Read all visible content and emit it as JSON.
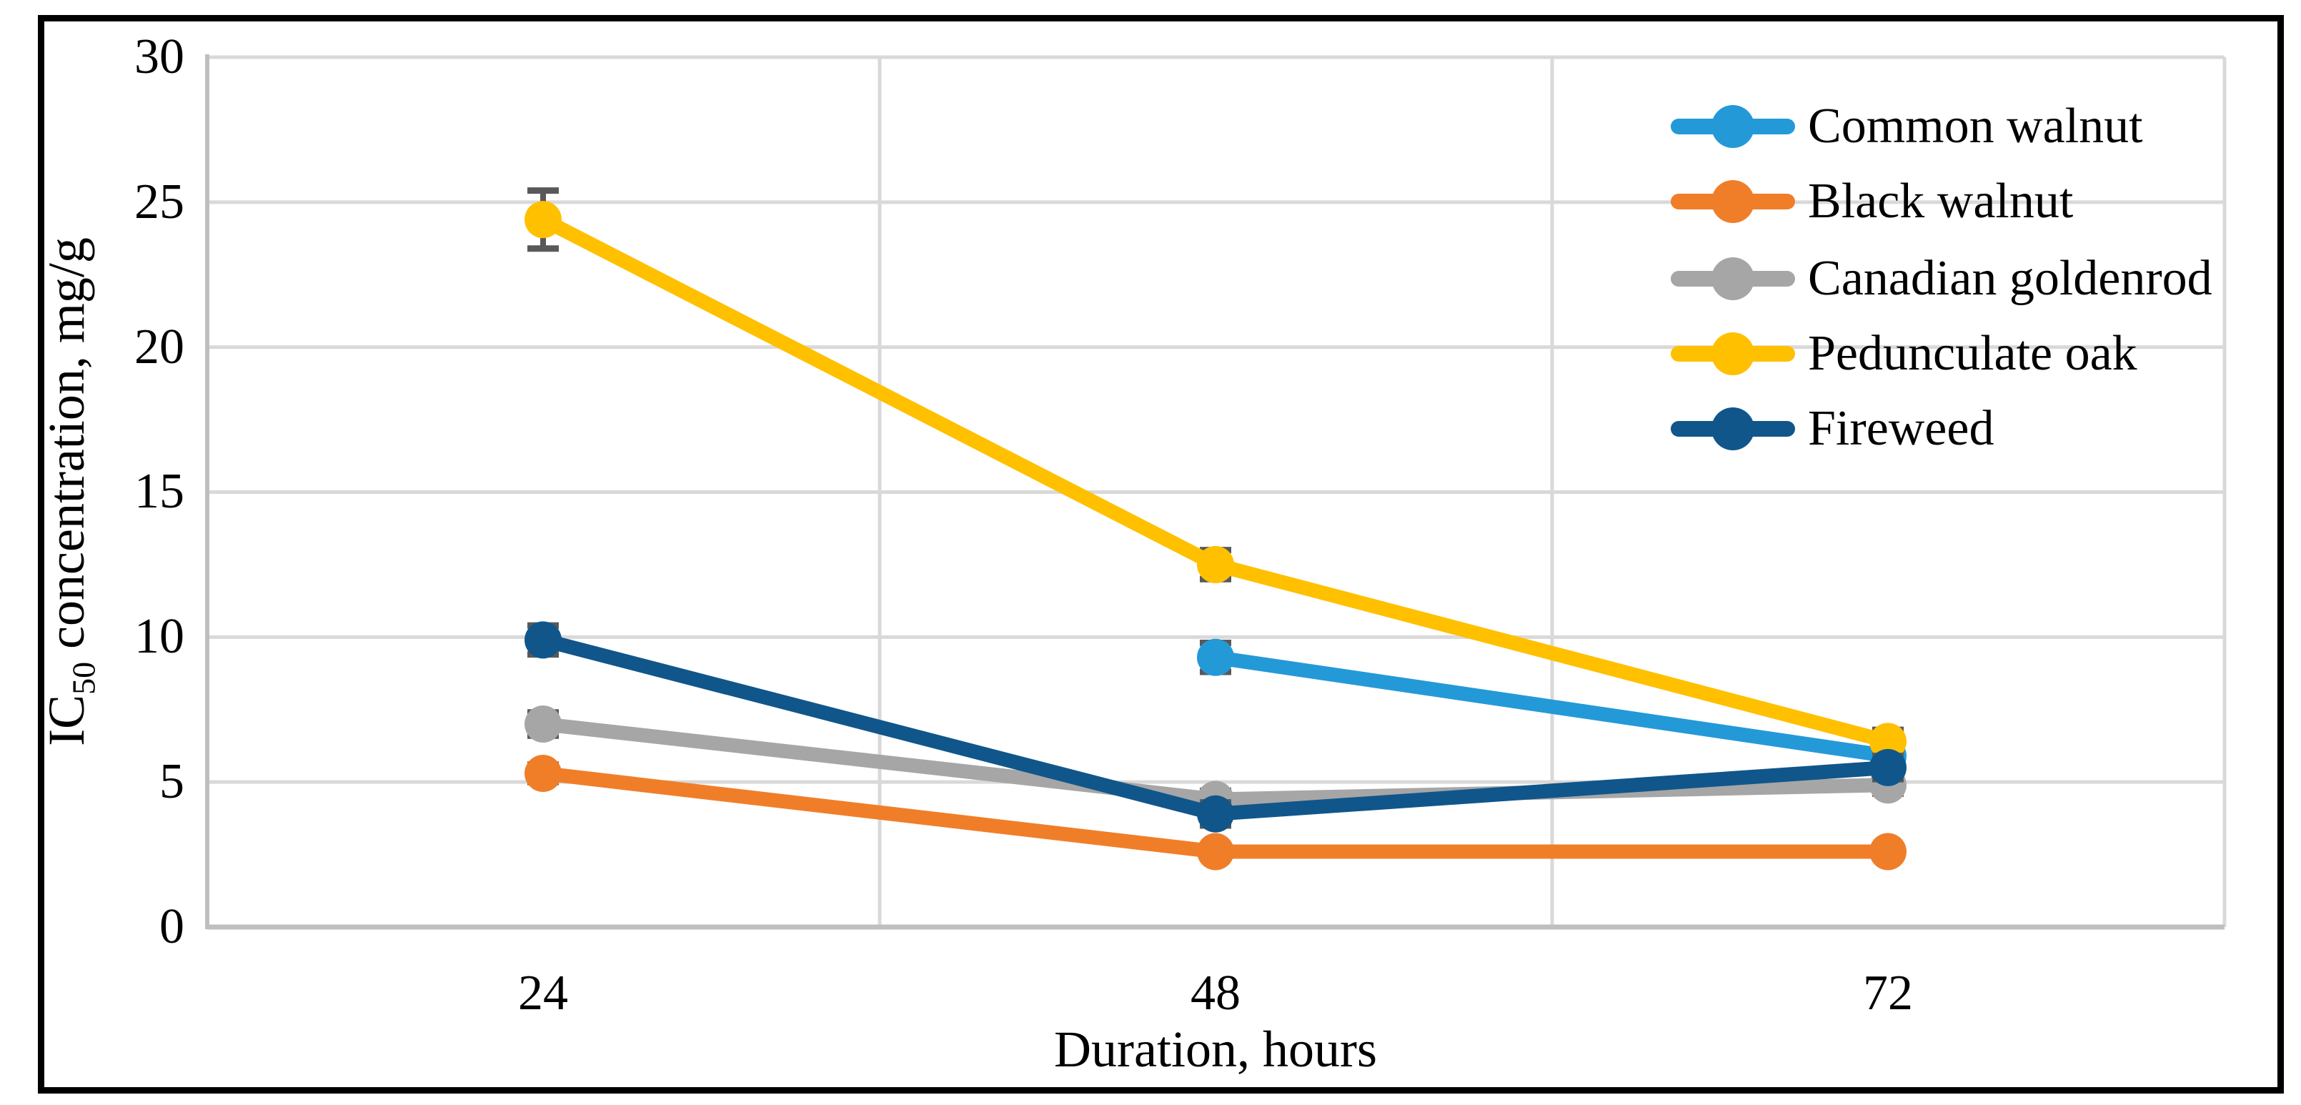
{
  "figure": {
    "background": "#ffffff",
    "border_color": "#000000"
  },
  "chart_data": {
    "type": "line",
    "title": "",
    "xlabel": "Duration, hours",
    "ylabel": "IC50 concentration, mg/g",
    "ylabel_parts": {
      "prefix": "IC",
      "sub": "50",
      "suffix": " concentration, mg/g"
    },
    "x_categories": [
      "24",
      "48",
      "72"
    ],
    "yticks": [
      "0",
      "5",
      "10",
      "15",
      "20",
      "25",
      "30"
    ],
    "ylim": [
      0,
      30
    ],
    "ytick_step": 5,
    "grid": true,
    "legend_position": "upper-right-inside",
    "marker": "circle",
    "error_bars": true,
    "series": [
      {
        "name": "Common walnut",
        "color": "#2499D8",
        "values": [
          null,
          9.3,
          5.9
        ],
        "errors": [
          null,
          0.5,
          0.4
        ]
      },
      {
        "name": "Black walnut",
        "color": "#F07E29",
        "values": [
          5.3,
          2.6,
          2.6
        ],
        "errors": [
          0.3,
          0.2,
          0.2
        ]
      },
      {
        "name": "Canadian goldenrod",
        "color": "#A6A6A6",
        "values": [
          7.0,
          4.4,
          4.9
        ],
        "errors": [
          0.4,
          0.3,
          0.3
        ]
      },
      {
        "name": "Pedunculate oak",
        "color": "#FFC000",
        "values": [
          24.4,
          12.5,
          6.4
        ],
        "errors": [
          1.0,
          0.5,
          0.4
        ]
      },
      {
        "name": "Fireweed",
        "color": "#10568B",
        "values": [
          9.9,
          3.9,
          5.5
        ],
        "errors": [
          0.5,
          0.4,
          0.4
        ]
      }
    ],
    "error_bar_color": "#595959",
    "gridline_color": "#D9D9D9",
    "axis_line_color": "#BFBFBF"
  }
}
